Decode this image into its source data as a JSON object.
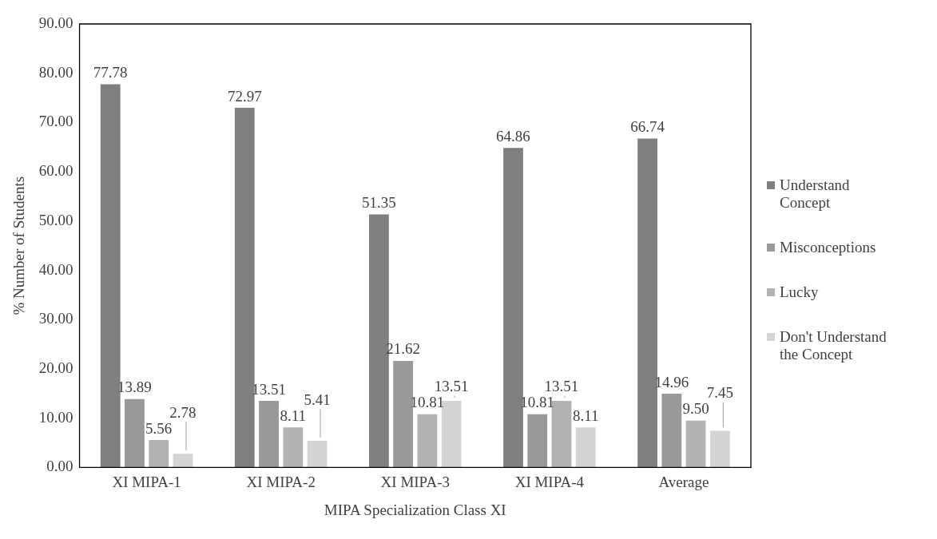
{
  "chart_data": {
    "type": "bar",
    "xlabel": "MIPA Specialization Class XI",
    "ylabel": "% Number of Students",
    "categories": [
      "XI MIPA-1",
      "XI MIPA-2",
      "XI MIPA-3",
      "XI MIPA-4",
      "Average"
    ],
    "series": [
      {
        "name": "Understand Concept",
        "color": "#7f7f7f",
        "values": [
          77.78,
          72.97,
          51.35,
          64.86,
          66.74
        ],
        "value_labels": [
          "77.78",
          "72.97",
          "51.35",
          "64.86",
          "66.74"
        ]
      },
      {
        "name": "Misconceptions",
        "color": "#999999",
        "values": [
          13.89,
          13.51,
          21.62,
          10.81,
          14.96
        ],
        "value_labels": [
          "13.89",
          "13.51",
          "21.62",
          "10.81",
          "14.96"
        ]
      },
      {
        "name": "Lucky",
        "color": "#b2b2b2",
        "values": [
          5.56,
          8.11,
          10.81,
          13.51,
          9.5
        ],
        "value_labels": [
          "5.56",
          "8.11",
          "10.81",
          "13.51",
          "9.50"
        ]
      },
      {
        "name": "Don't Understand the Concept",
        "color": "#d4d4d4",
        "values": [
          2.78,
          5.41,
          13.51,
          8.11,
          7.45
        ],
        "value_labels": [
          "2.78",
          "5.41",
          "13.51",
          "8.11",
          "7.45"
        ]
      }
    ],
    "ylim": [
      0,
      90
    ],
    "yticks": [
      {
        "value": 0,
        "label": "0.00"
      },
      {
        "value": 10,
        "label": "10.00"
      },
      {
        "value": 20,
        "label": "20.00"
      },
      {
        "value": 30,
        "label": "30.00"
      },
      {
        "value": 40,
        "label": "40.00"
      },
      {
        "value": 50,
        "label": "50.00"
      },
      {
        "value": 60,
        "label": "60.00"
      },
      {
        "value": 70,
        "label": "70.00"
      },
      {
        "value": 80,
        "label": "80.00"
      },
      {
        "value": 90,
        "label": "90.00"
      }
    ],
    "grid": false,
    "legend": "right"
  }
}
